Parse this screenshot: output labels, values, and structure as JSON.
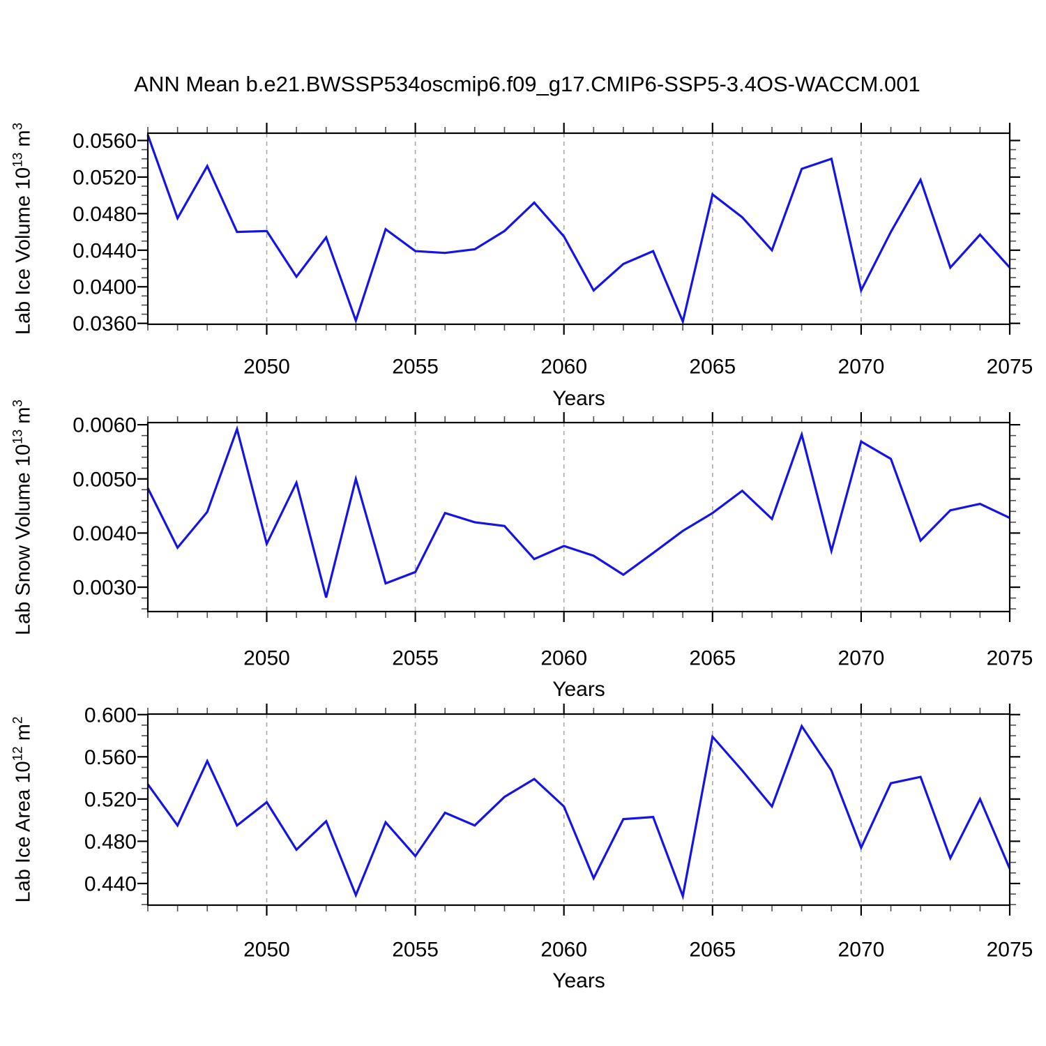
{
  "title": "ANN Mean b.e21.BWSSP534oscmip6.f09_g17.CMIP6-SSP5-3.4OS-WACCM.001",
  "line_color": "#1414e6",
  "grid_color": "#a8a8a8",
  "axis_color": "#000000",
  "chart_data": [
    {
      "type": "line",
      "ylabel": "Lab Ice Volume 10^13 m^3",
      "ylabel_parts": {
        "text": "Lab Ice Volume 10",
        "sup": "13",
        "unit": " m",
        "unit_sup": "3"
      },
      "xlabel": "Years",
      "x": [
        2046,
        2047,
        2048,
        2049,
        2050,
        2051,
        2052,
        2053,
        2054,
        2055,
        2056,
        2057,
        2058,
        2059,
        2060,
        2061,
        2062,
        2063,
        2064,
        2065,
        2066,
        2067,
        2068,
        2069,
        2070,
        2071,
        2072,
        2073,
        2074,
        2075
      ],
      "values": [
        0.0566,
        0.0475,
        0.0532,
        0.046,
        0.0461,
        0.0411,
        0.0454,
        0.0363,
        0.0463,
        0.0439,
        0.0437,
        0.0441,
        0.0461,
        0.0492,
        0.0455,
        0.0396,
        0.0425,
        0.0439,
        0.0362,
        0.0501,
        0.0476,
        0.044,
        0.0529,
        0.054,
        0.0396,
        0.046,
        0.0517,
        0.0421,
        0.0457,
        0.0421
      ],
      "xlim": [
        2046,
        2075
      ],
      "ylim": [
        0.0359,
        0.0568
      ],
      "xticks": [
        2050,
        2055,
        2060,
        2065,
        2070,
        2075
      ],
      "xtick_labels": [
        "2050",
        "2055",
        "2060",
        "2065",
        "2070",
        "2075"
      ],
      "xminor_step": 1,
      "grid_x": [
        2050,
        2055,
        2060,
        2065,
        2070
      ],
      "yticks": [
        0.036,
        0.04,
        0.044,
        0.048,
        0.052,
        0.056
      ],
      "ytick_labels": [
        "0.0360",
        "0.0400",
        "0.0440",
        "0.0480",
        "0.0520",
        "0.0560"
      ],
      "yminor_step": 0.001,
      "grid_on": false
    },
    {
      "type": "line",
      "ylabel": "Lab Snow Volume 10^13 m^3",
      "ylabel_parts": {
        "text": "Lab Snow Volume 10",
        "sup": "13",
        "unit": " m",
        "unit_sup": "3"
      },
      "xlabel": "Years",
      "x": [
        2046,
        2047,
        2048,
        2049,
        2050,
        2051,
        2052,
        2053,
        2054,
        2055,
        2056,
        2057,
        2058,
        2059,
        2060,
        2061,
        2062,
        2063,
        2064,
        2065,
        2066,
        2067,
        2068,
        2069,
        2070,
        2071,
        2072,
        2073,
        2074,
        2075
      ],
      "values": [
        0.00483,
        0.00373,
        0.00439,
        0.00592,
        0.0038,
        0.00493,
        0.00281,
        0.005,
        0.00307,
        0.00328,
        0.00437,
        0.0042,
        0.00413,
        0.00352,
        0.00376,
        0.00358,
        0.00323,
        0.00363,
        0.00404,
        0.00437,
        0.00478,
        0.00426,
        0.00582,
        0.00367,
        0.00569,
        0.00537,
        0.00386,
        0.00442,
        0.00454,
        0.00428
      ],
      "xlim": [
        2046,
        2075
      ],
      "ylim": [
        0.00255,
        0.00604
      ],
      "xticks": [
        2050,
        2055,
        2060,
        2065,
        2070,
        2075
      ],
      "xtick_labels": [
        "2050",
        "2055",
        "2060",
        "2065",
        "2070",
        "2075"
      ],
      "xminor_step": 1,
      "grid_x": [
        2050,
        2055,
        2060,
        2065,
        2070
      ],
      "yticks": [
        0.003,
        0.004,
        0.005,
        0.006
      ],
      "ytick_labels": [
        "0.0030",
        "0.0040",
        "0.0050",
        "0.0060"
      ],
      "yminor_step": 0.0002,
      "grid_on": false
    },
    {
      "type": "line",
      "ylabel": "Lab Ice Area 10^12 m^2",
      "ylabel_parts": {
        "text": "Lab Ice Area 10",
        "sup": "12",
        "unit": " m",
        "unit_sup": "2"
      },
      "xlabel": "Years",
      "x": [
        2046,
        2047,
        2048,
        2049,
        2050,
        2051,
        2052,
        2053,
        2054,
        2055,
        2056,
        2057,
        2058,
        2059,
        2060,
        2061,
        2062,
        2063,
        2064,
        2065,
        2066,
        2067,
        2068,
        2069,
        2070,
        2071,
        2072,
        2073,
        2074,
        2075
      ],
      "values": [
        0.534,
        0.495,
        0.556,
        0.495,
        0.517,
        0.472,
        0.499,
        0.429,
        0.498,
        0.466,
        0.507,
        0.495,
        0.522,
        0.539,
        0.513,
        0.445,
        0.501,
        0.503,
        0.428,
        0.579,
        0.547,
        0.513,
        0.589,
        0.547,
        0.474,
        0.535,
        0.541,
        0.464,
        0.52,
        0.454
      ],
      "xlim": [
        2046,
        2075
      ],
      "ylim": [
        0.4195,
        0.6005
      ],
      "xticks": [
        2050,
        2055,
        2060,
        2065,
        2070,
        2075
      ],
      "xtick_labels": [
        "2050",
        "2055",
        "2060",
        "2065",
        "2070",
        "2075"
      ],
      "xminor_step": 1,
      "grid_x": [
        2050,
        2055,
        2060,
        2065,
        2070
      ],
      "yticks": [
        0.44,
        0.48,
        0.52,
        0.56,
        0.6
      ],
      "ytick_labels": [
        "0.440",
        "0.480",
        "0.520",
        "0.560",
        "0.600"
      ],
      "yminor_step": 0.01,
      "grid_on": false
    }
  ]
}
